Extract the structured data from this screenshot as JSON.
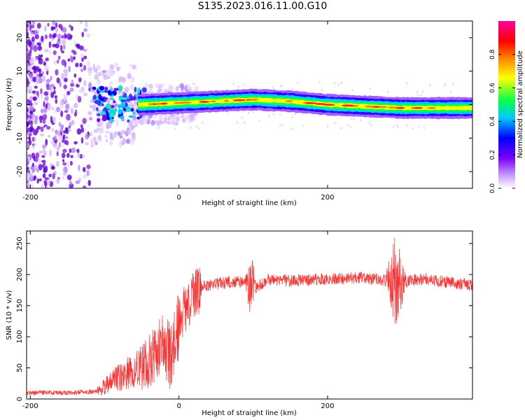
{
  "figure": {
    "title": "S135.2023.016.11.00.G10"
  },
  "chart_data": [
    {
      "type": "heatmap",
      "title": "",
      "xlabel": "Height of straight line (km)",
      "ylabel": "Frequency (Hz)",
      "xlim": [
        -205,
        395
      ],
      "ylim": [
        -25,
        25
      ],
      "xticks": [
        -200,
        0,
        200
      ],
      "yticks": [
        -20,
        -10,
        0,
        10,
        20
      ],
      "colorbar": {
        "label": "Normalized spectral amplitude",
        "range": [
          0,
          1
        ],
        "ticks": [
          0.0,
          0.2,
          0.4,
          0.6,
          0.8
        ],
        "colors": [
          "#ffffff",
          "#7a00ff",
          "#0000ff",
          "#00c8ff",
          "#00ff50",
          "#ffff00",
          "#ff8000",
          "#ff0000",
          "#ff00a0"
        ]
      },
      "ridge": [
        {
          "x": -100,
          "f": 0
        },
        {
          "x": -50,
          "f": 0
        },
        {
          "x": 0,
          "f": 0.5
        },
        {
          "x": 50,
          "f": 1
        },
        {
          "x": 100,
          "f": 1.5
        },
        {
          "x": 150,
          "f": 1
        },
        {
          "x": 200,
          "f": 0
        },
        {
          "x": 250,
          "f": -0.5
        },
        {
          "x": 300,
          "f": -1
        },
        {
          "x": 395,
          "f": -1
        }
      ]
    },
    {
      "type": "line",
      "title": "",
      "xlabel": "Height of straight line (km)",
      "ylabel": "SNR (10 * v/v)",
      "xlim": [
        -205,
        395
      ],
      "ylim": [
        0,
        270
      ],
      "xticks": [
        -200,
        0,
        200
      ],
      "yticks": [
        0,
        50,
        100,
        150,
        200,
        250
      ],
      "line_color": "#ff3030",
      "series": [
        {
          "name": "",
          "x": [
            -205,
            -150,
            -110,
            -100,
            -80,
            -60,
            -40,
            -20,
            -10,
            0,
            10,
            20,
            30,
            50,
            80,
            95,
            100,
            105,
            120,
            150,
            200,
            250,
            280,
            290,
            295,
            300,
            310,
            330,
            360,
            395
          ],
          "y": [
            10,
            10,
            12,
            20,
            35,
            45,
            60,
            90,
            60,
            120,
            150,
            165,
            180,
            185,
            190,
            180,
            190,
            180,
            192,
            190,
            193,
            195,
            190,
            195,
            190,
            185,
            190,
            193,
            188,
            183
          ]
        }
      ]
    }
  ]
}
